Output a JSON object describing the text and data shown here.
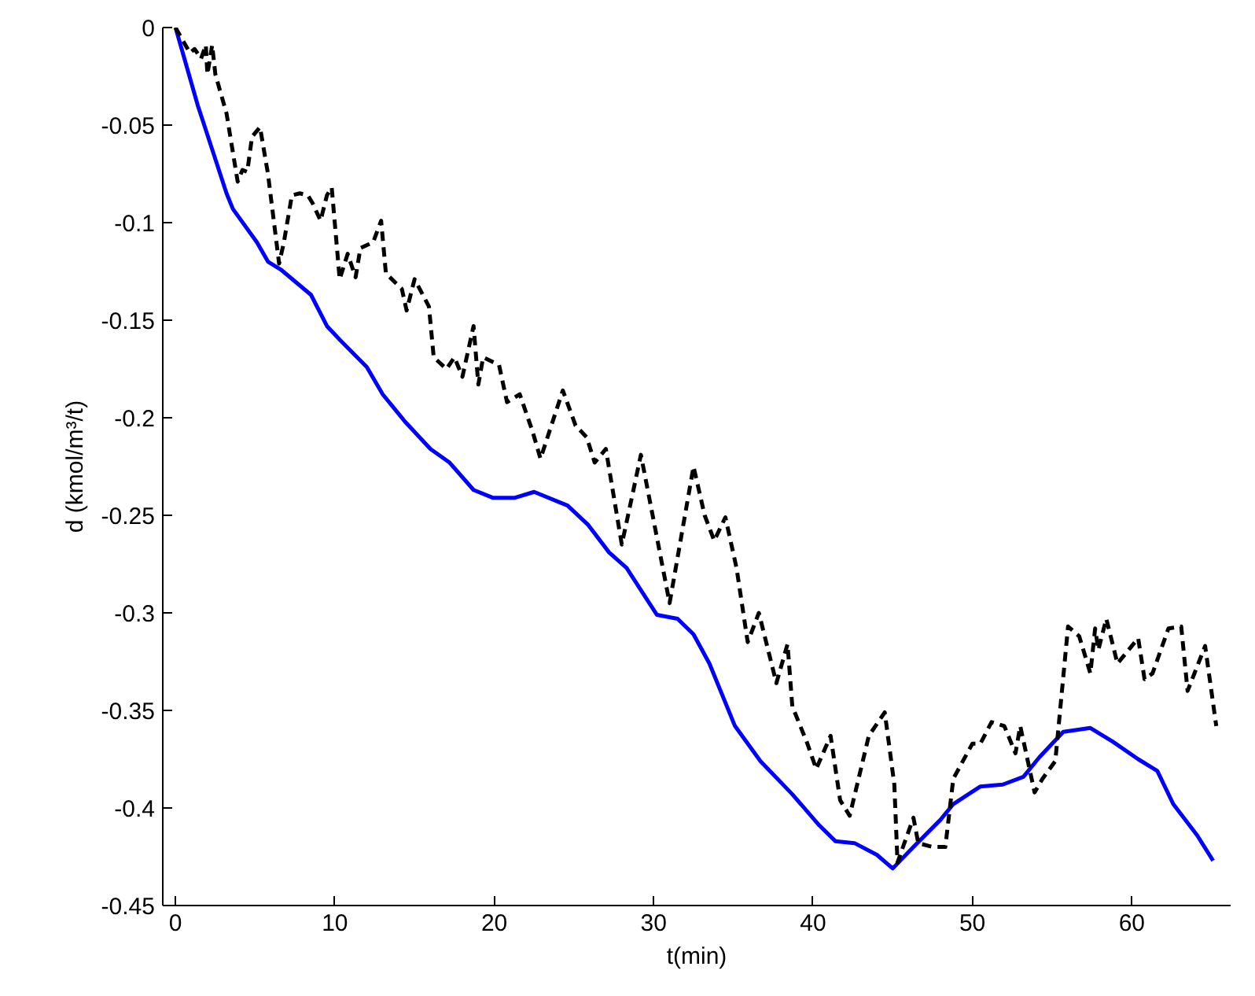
{
  "chart_data": {
    "type": "line",
    "xlabel": "t(min)",
    "ylabel": "d (kmol/m³/t)",
    "xlim": [
      -0.8,
      66.2
    ],
    "ylim": [
      -0.45,
      0
    ],
    "xticks": [
      0,
      10,
      20,
      30,
      40,
      50,
      60
    ],
    "yticks": [
      {
        "value": -0.45,
        "label": "-0.45"
      },
      {
        "value": -0.4,
        "label": "-0.4"
      },
      {
        "value": -0.35,
        "label": "-0.35"
      },
      {
        "value": -0.3,
        "label": "-0.3"
      },
      {
        "value": -0.25,
        "label": "-0.25"
      },
      {
        "value": -0.2,
        "label": "-0.2"
      },
      {
        "value": -0.15,
        "label": "-0.15"
      },
      {
        "value": -0.1,
        "label": "-0.1"
      },
      {
        "value": -0.05,
        "label": "-0.05"
      },
      {
        "value": 0,
        "label": "0"
      }
    ],
    "series": [
      {
        "color": "#0000ff",
        "line_style": "solid",
        "x": [
          0,
          1.4,
          3.2,
          3.6,
          5.1,
          5.8,
          6.6,
          8.5,
          9.5,
          10.3,
          12.0,
          13.0,
          14.4,
          16.0,
          17.2,
          18.7,
          19.9,
          21.3,
          22.5,
          24.6,
          25.9,
          27.2,
          28.3,
          30.2,
          31.5,
          32.5,
          33.5,
          35.1,
          36.7,
          38.7,
          40.4,
          41.4,
          42.6,
          44.0,
          45.0,
          46.3,
          48.0,
          48.8,
          50.5,
          51.9,
          53.2,
          54.2,
          55.7,
          57.4,
          58.8,
          60.4,
          61.6,
          62.6,
          64.1,
          65.1
        ],
        "values": [
          0,
          -0.04,
          -0.085,
          -0.093,
          -0.11,
          -0.12,
          -0.124,
          -0.137,
          -0.153,
          -0.16,
          -0.174,
          -0.188,
          -0.202,
          -0.216,
          -0.223,
          -0.237,
          -0.241,
          -0.241,
          -0.238,
          -0.245,
          -0.255,
          -0.269,
          -0.277,
          -0.301,
          -0.303,
          -0.311,
          -0.326,
          -0.358,
          -0.376,
          -0.393,
          -0.409,
          -0.417,
          -0.418,
          -0.424,
          -0.431,
          -0.42,
          -0.406,
          -0.398,
          -0.389,
          -0.388,
          -0.384,
          -0.374,
          -0.361,
          -0.359,
          -0.366,
          -0.375,
          -0.381,
          -0.398,
          -0.414,
          -0.427
        ]
      },
      {
        "color": "#000000",
        "line_style": "dashed",
        "x": [
          0,
          0.9,
          1.2,
          1.6,
          1.9,
          2.0,
          2.3,
          2.5,
          3.2,
          3.9,
          4.2,
          4.5,
          4.8,
          5.3,
          5.8,
          6.5,
          6.8,
          7.3,
          7.8,
          8.3,
          8.6,
          9.1,
          9.5,
          9.8,
          10.3,
          10.8,
          11.3,
          11.6,
          12.4,
          12.9,
          13.2,
          14.2,
          14.5,
          15.0,
          15.9,
          16.2,
          17.0,
          17.5,
          18.0,
          18.7,
          19.0,
          19.3,
          20.3,
          20.8,
          21.6,
          22.4,
          22.9,
          24.3,
          25.1,
          25.8,
          26.3,
          27.0,
          28.0,
          29.2,
          31.0,
          32.5,
          33.2,
          33.8,
          34.5,
          35.2,
          35.9,
          36.6,
          37.7,
          38.4,
          38.7,
          39.6,
          40.2,
          41.1,
          41.7,
          42.3,
          43.5,
          44.5,
          45.1,
          45.3,
          45.6,
          46.3,
          46.6,
          47.5,
          48.3,
          48.8,
          50.0,
          50.5,
          51.2,
          52.0,
          52.7,
          53.0,
          53.9,
          54.4,
          55.2,
          56.0,
          56.7,
          57.4,
          57.7,
          57.9,
          58.4,
          59.1,
          60.4,
          60.8,
          61.3,
          62.3,
          63.1,
          63.5,
          64.6,
          65.3
        ],
        "values": [
          0,
          -0.013,
          -0.011,
          -0.016,
          -0.009,
          -0.024,
          -0.009,
          -0.024,
          -0.044,
          -0.079,
          -0.073,
          -0.074,
          -0.056,
          -0.051,
          -0.075,
          -0.121,
          -0.11,
          -0.086,
          -0.085,
          -0.086,
          -0.09,
          -0.099,
          -0.086,
          -0.082,
          -0.129,
          -0.116,
          -0.128,
          -0.113,
          -0.11,
          -0.099,
          -0.126,
          -0.134,
          -0.145,
          -0.129,
          -0.143,
          -0.169,
          -0.175,
          -0.169,
          -0.179,
          -0.153,
          -0.183,
          -0.169,
          -0.173,
          -0.192,
          -0.188,
          -0.207,
          -0.221,
          -0.186,
          -0.204,
          -0.21,
          -0.223,
          -0.216,
          -0.265,
          -0.219,
          -0.295,
          -0.225,
          -0.25,
          -0.263,
          -0.251,
          -0.277,
          -0.315,
          -0.3,
          -0.336,
          -0.316,
          -0.348,
          -0.366,
          -0.38,
          -0.363,
          -0.396,
          -0.404,
          -0.363,
          -0.351,
          -0.388,
          -0.428,
          -0.421,
          -0.405,
          -0.418,
          -0.42,
          -0.42,
          -0.385,
          -0.367,
          -0.367,
          -0.356,
          -0.358,
          -0.372,
          -0.358,
          -0.392,
          -0.385,
          -0.376,
          -0.307,
          -0.312,
          -0.331,
          -0.308,
          -0.319,
          -0.303,
          -0.326,
          -0.313,
          -0.334,
          -0.331,
          -0.308,
          -0.307,
          -0.34,
          -0.317,
          -0.358
        ]
      }
    ]
  }
}
